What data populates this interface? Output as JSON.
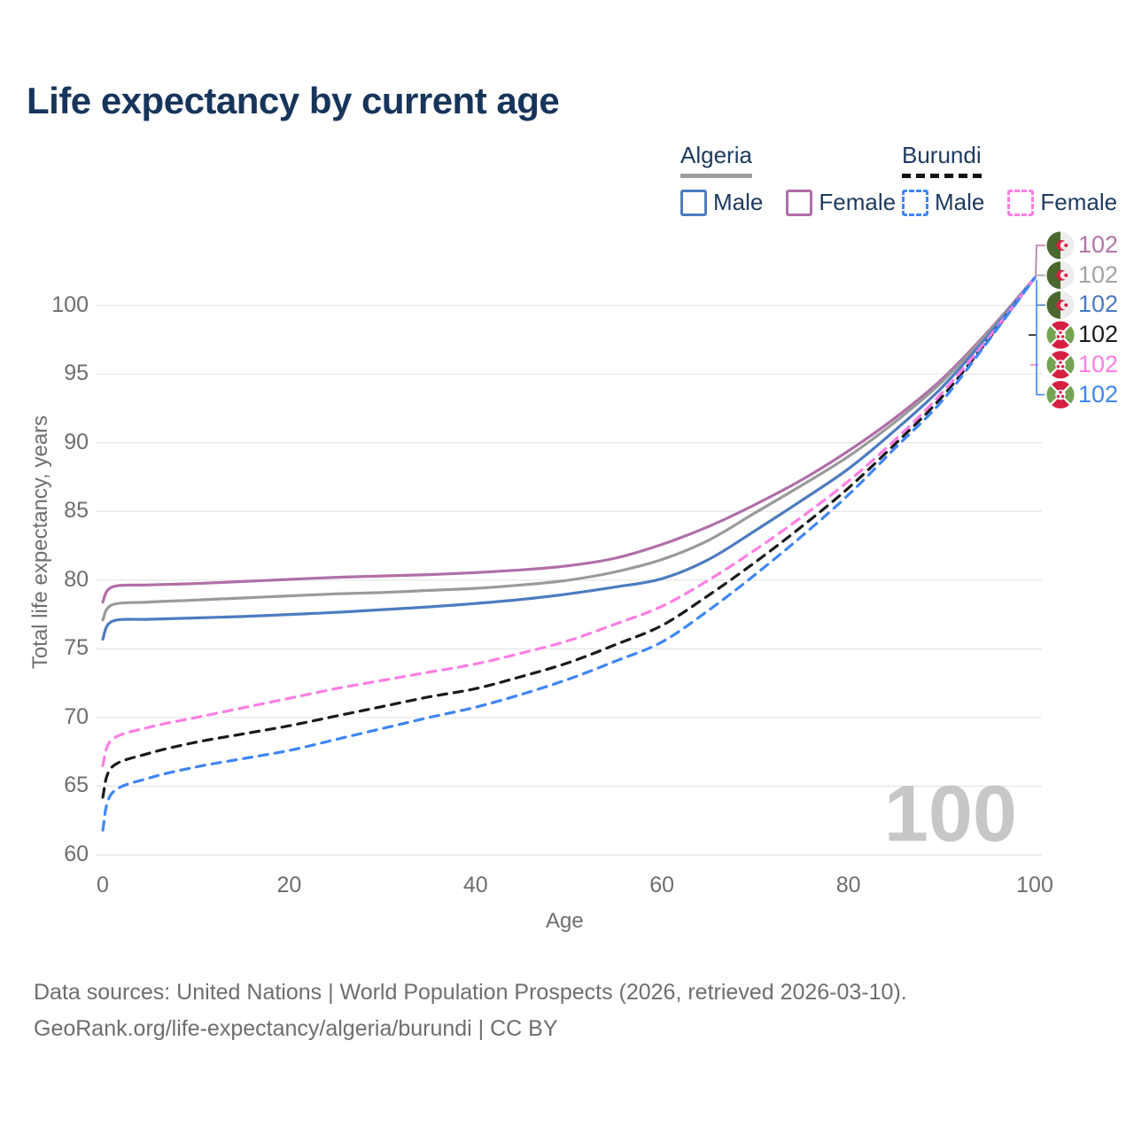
{
  "title": "Life expectancy by current age",
  "legend": {
    "algeria": {
      "label": "Algeria",
      "male_label": "Male",
      "female_label": "Female",
      "male_color": "#4d7cc0",
      "female_color": "#b06fa8",
      "line_style": "solid",
      "underline_color": "#9e9e9e"
    },
    "burundi": {
      "label": "Burundi",
      "male_label": "Male",
      "female_label": "Female",
      "male_color": "#3f86f7",
      "female_color": "#ff7ee3",
      "line_style": "dashed",
      "underline_color": "#141414"
    }
  },
  "watermark": "100",
  "footer": {
    "line1": "Data sources: United Nations | World Population Prospects (2026, retrieved 2026-03-10).",
    "line2": "GeoRank.org/life-expectancy/algeria/burundi | CC BY"
  },
  "end_labels": [
    {
      "value": "102",
      "flag": "algeria",
      "icon": "algeria-flag-icon",
      "color": "#b573a7"
    },
    {
      "value": "102",
      "flag": "algeria",
      "icon": "algeria-flag-icon",
      "color": "#a3a3a3"
    },
    {
      "value": "102",
      "flag": "algeria",
      "icon": "algeria-flag-icon",
      "color": "#4a7bc4"
    },
    {
      "value": "102",
      "flag": "burundi",
      "icon": "burundi-flag-icon",
      "color": "#1a1a1a"
    },
    {
      "value": "102",
      "flag": "burundi",
      "icon": "burundi-flag-icon",
      "color": "#ff7ee3"
    },
    {
      "value": "102",
      "flag": "burundi",
      "icon": "burundi-flag-icon",
      "color": "#3e86f6"
    }
  ],
  "chart_data": {
    "type": "line",
    "title": "Life expectancy by current age",
    "xlabel": "Age",
    "ylabel": "Total life expectancy, years",
    "xlim": [
      0,
      102
    ],
    "ylim": [
      60,
      103
    ],
    "x_ticks": [
      0,
      20,
      40,
      60,
      80,
      100
    ],
    "y_ticks": [
      60,
      65,
      70,
      75,
      80,
      85,
      90,
      95,
      100
    ],
    "grid": "horizontal",
    "legend_position": "top-right",
    "x": [
      0,
      1,
      5,
      10,
      15,
      20,
      25,
      30,
      35,
      40,
      45,
      50,
      55,
      60,
      65,
      70,
      75,
      80,
      85,
      90,
      95,
      100
    ],
    "series": [
      {
        "name": "Algeria Female",
        "country": "Algeria",
        "sex": "Female",
        "style": "solid",
        "color": "#b06fa8",
        "values": [
          78.4,
          79.5,
          79.65,
          79.75,
          79.9,
          80.05,
          80.2,
          80.3,
          80.4,
          80.55,
          80.75,
          81.05,
          81.6,
          82.6,
          83.9,
          85.5,
          87.3,
          89.4,
          91.8,
          94.6,
          98.1,
          102
        ]
      },
      {
        "name": "Algeria Both sexes",
        "country": "Algeria",
        "sex": "Both",
        "style": "solid",
        "color": "#9a9a9a",
        "values": [
          77.1,
          78.2,
          78.4,
          78.55,
          78.7,
          78.85,
          79.0,
          79.1,
          79.25,
          79.4,
          79.65,
          80.0,
          80.6,
          81.5,
          82.9,
          84.9,
          86.9,
          89.0,
          91.5,
          94.4,
          98.0,
          102
        ]
      },
      {
        "name": "Algeria Male",
        "country": "Algeria",
        "sex": "Male",
        "style": "solid",
        "color": "#4d7cc0",
        "values": [
          75.7,
          77.0,
          77.15,
          77.25,
          77.35,
          77.5,
          77.65,
          77.85,
          78.05,
          78.3,
          78.6,
          79.0,
          79.5,
          80.1,
          81.5,
          83.6,
          85.8,
          88.1,
          90.9,
          94.0,
          97.8,
          102
        ]
      },
      {
        "name": "Burundi Both sexes",
        "country": "Burundi",
        "sex": "Both",
        "style": "dashed",
        "color": "#1a1a1a",
        "values": [
          64.2,
          66.4,
          67.4,
          68.2,
          68.8,
          69.4,
          70.1,
          70.8,
          71.5,
          72.1,
          73.0,
          74.0,
          75.3,
          76.7,
          78.9,
          81.3,
          83.9,
          86.7,
          89.9,
          93.3,
          97.5,
          102
        ]
      },
      {
        "name": "Burundi Female",
        "country": "Burundi",
        "sex": "Female",
        "style": "dashed",
        "color": "#ff7ee3",
        "values": [
          66.5,
          68.4,
          69.3,
          70.0,
          70.7,
          71.4,
          72.1,
          72.7,
          73.3,
          73.9,
          74.7,
          75.6,
          76.8,
          78.1,
          80.0,
          82.2,
          84.6,
          87.2,
          90.2,
          93.6,
          97.6,
          102
        ]
      },
      {
        "name": "Burundi Male",
        "country": "Burundi",
        "sex": "Male",
        "style": "dashed",
        "color": "#3f86f7",
        "values": [
          61.8,
          64.5,
          65.6,
          66.4,
          67.0,
          67.6,
          68.4,
          69.2,
          70.0,
          70.75,
          71.7,
          72.8,
          74.1,
          75.5,
          77.8,
          80.4,
          83.2,
          86.2,
          89.6,
          93.0,
          97.4,
          102
        ]
      }
    ],
    "end_value_label": "102",
    "current_age_indicator": "100"
  }
}
